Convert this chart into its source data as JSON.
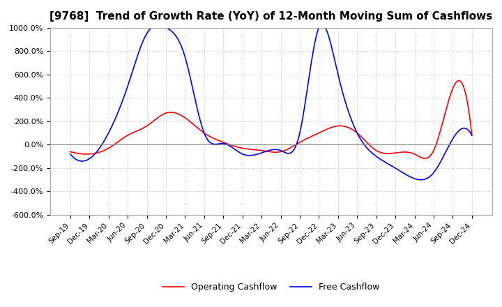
{
  "title": "[9768]  Trend of Growth Rate (YoY) of 12-Month Moving Sum of Cashflows",
  "title_fontsize": 11,
  "ylim": [
    -600,
    1000
  ],
  "yticks": [
    -600,
    -400,
    -200,
    0,
    200,
    400,
    600,
    800,
    1000
  ],
  "ytick_labels": [
    "-600.0%",
    "-400.0%",
    "-200.0%",
    "0.0%",
    "200.0%",
    "400.0%",
    "600.0%",
    "800.0%",
    "1000.0%"
  ],
  "bg_color": "#ffffff",
  "grid_color": "#aaaaaa",
  "operating_color": "#ff0000",
  "free_color": "#0000ff",
  "x_labels": [
    "Sep-19",
    "Dec-19",
    "Mar-20",
    "Jun-20",
    "Sep-20",
    "Dec-20",
    "Mar-21",
    "Jun-21",
    "Sep-21",
    "Dec-21",
    "Mar-22",
    "Jun-22",
    "Sep-22",
    "Dec-22",
    "Mar-23",
    "Jun-23",
    "Sep-23",
    "Dec-23",
    "Mar-24",
    "Jun-24",
    "Sep-24",
    "Dec-24"
  ],
  "operating_cashflow": [
    -60,
    -80,
    -30,
    80,
    160,
    270,
    230,
    100,
    20,
    -30,
    -50,
    -60,
    20,
    100,
    160,
    100,
    -50,
    -70,
    -80,
    -50,
    480,
    80
  ],
  "free_cashflow": [
    -80,
    -120,
    100,
    500,
    950,
    1000,
    750,
    100,
    10,
    -80,
    -70,
    -50,
    100,
    1000,
    600,
    100,
    -100,
    -200,
    -290,
    -240,
    50,
    80
  ]
}
